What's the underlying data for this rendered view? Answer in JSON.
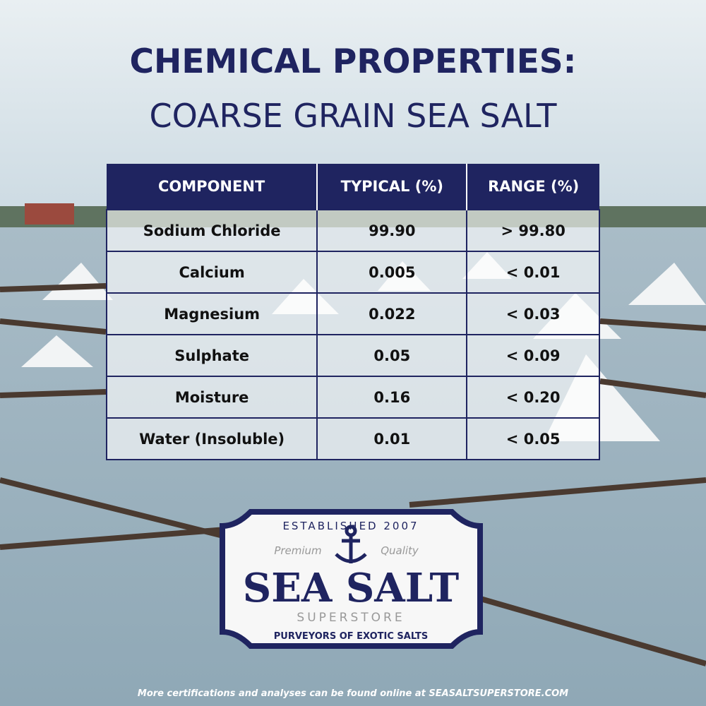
{
  "header": {
    "title": "CHEMICAL PROPERTIES:",
    "subtitle": "COARSE GRAIN SEA SALT"
  },
  "table": {
    "columns": [
      "COMPONENT",
      "TYPICAL (%)",
      "RANGE (%)"
    ],
    "rows": [
      [
        "Sodium Chloride",
        "99.90",
        "> 99.80"
      ],
      [
        "Calcium",
        "0.005",
        "< 0.01"
      ],
      [
        "Magnesium",
        "0.022",
        "< 0.03"
      ],
      [
        "Sulphate",
        "0.05",
        "< 0.09"
      ],
      [
        "Moisture",
        "0.16",
        "< 0.20"
      ],
      [
        "Water (Insoluble)",
        "0.01",
        "< 0.05"
      ]
    ]
  },
  "logo": {
    "established": "ESTABLISHED 2007",
    "left_tag": "Premium",
    "right_tag": "Quality",
    "name": "SEA SALT",
    "subname": "SUPERSTORE",
    "motto": "PURVEYORS OF EXOTIC SALTS"
  },
  "footer": "More certifications and analyses can be found online at SEASALTSUPERSTORE.COM"
}
